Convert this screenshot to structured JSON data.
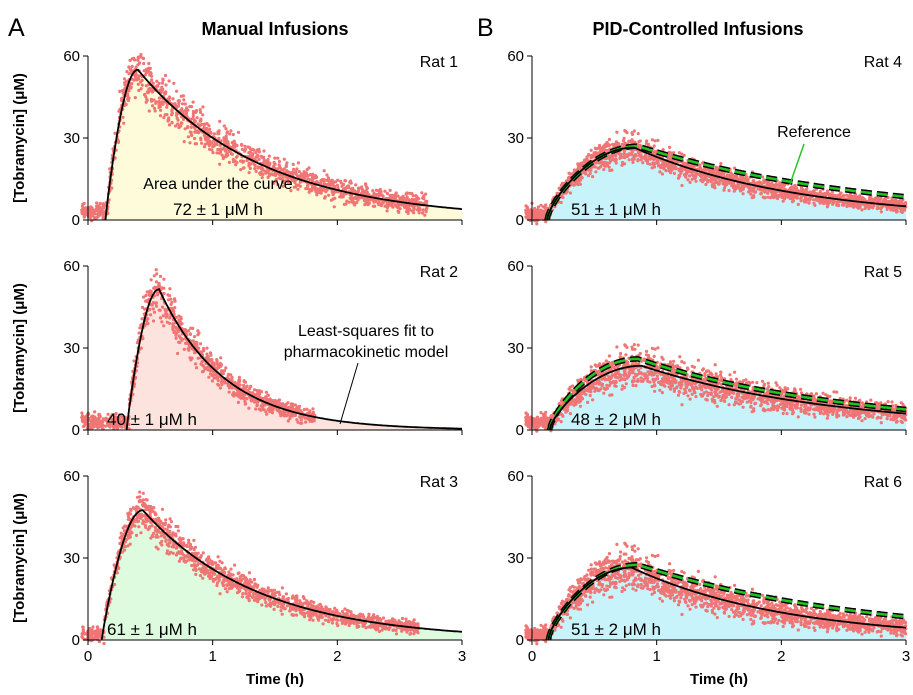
{
  "figure": {
    "panel_letters": [
      "A",
      "B"
    ],
    "column_titles": [
      "Manual Infusions",
      "PID-Controlled Infusions"
    ],
    "colors": {
      "data_points": "#f07575",
      "fit_line": "#000000",
      "reference_line": "#22c022",
      "fill_rat1": "#fdfbd9",
      "fill_rat2": "#fde3dd",
      "fill_rat3": "#defbdf",
      "fill_pid": "#c8f3fb"
    }
  },
  "annotations": {
    "auc_title": "Area under the curve",
    "fit_note_line1": "Least-squares fit to",
    "fit_note_line2": "pharmacokinetic model",
    "reference": "Reference"
  },
  "chart_data": [
    {
      "type": "scatter",
      "rat": "Rat 1",
      "controller": "Manual",
      "auc_text": "72 ± 1 μM h",
      "xlabel": "",
      "ylabel": "[Tobramycin] (μM)",
      "xlim": [
        0,
        3
      ],
      "ylim": [
        0,
        60
      ],
      "yticks": [
        0,
        30,
        60
      ],
      "xticks": [
        0,
        1,
        2,
        3
      ],
      "fit": {
        "t0": 0.14,
        "peak_time": 0.4,
        "peak_value": 55.0,
        "end_value": 4.0,
        "rise_shape": 0.9
      },
      "scatter": {
        "start": -0.05,
        "end": 2.72,
        "noise": 3.4,
        "baseline": 3.0,
        "count": 1400
      },
      "series": [
        {
          "name": "",
          "x": [
            0.14,
            0.25,
            0.4,
            0.75,
            1.0,
            1.5,
            2.0,
            2.5,
            3.0
          ],
          "y": [
            0,
            45,
            55,
            44,
            35,
            21,
            12,
            7,
            4
          ]
        }
      ],
      "fill": "fill_rat1",
      "reference": null
    },
    {
      "type": "scatter",
      "rat": "Rat 2",
      "controller": "Manual",
      "auc_text": "40 ± 1 μM h",
      "xlabel": "",
      "ylabel": "[Tobramycin] (μM)",
      "xlim": [
        0,
        3
      ],
      "ylim": [
        0,
        60
      ],
      "yticks": [
        0,
        30,
        60
      ],
      "xticks": [
        0,
        1,
        2,
        3
      ],
      "fit": {
        "t0": 0.31,
        "peak_time": 0.57,
        "peak_value": 51.5,
        "end_value": 0.5,
        "rise_shape": 0.9
      },
      "scatter": {
        "start": -0.05,
        "end": 1.82,
        "noise": 3.0,
        "baseline": 3.0,
        "count": 1000
      },
      "series": [
        {
          "name": "",
          "x": [
            0.31,
            0.45,
            0.57,
            0.8,
            1.0,
            1.5,
            2.0,
            3.0
          ],
          "y": [
            0,
            40,
            51.5,
            40,
            29,
            11,
            4,
            0.5
          ]
        }
      ],
      "fill": "fill_rat2",
      "reference": null
    },
    {
      "type": "scatter",
      "rat": "Rat 3",
      "controller": "Manual",
      "auc_text": "61 ± 1 μM h",
      "xlabel": "Time (h)",
      "ylabel": "[Tobramycin] (μM)",
      "xlim": [
        0,
        3
      ],
      "ylim": [
        0,
        60
      ],
      "yticks": [
        0,
        30,
        60
      ],
      "xticks": [
        0,
        1,
        2,
        3
      ],
      "fit": {
        "t0": 0.11,
        "peak_time": 0.44,
        "peak_value": 47.5,
        "end_value": 3.0,
        "rise_shape": 0.9
      },
      "scatter": {
        "start": -0.05,
        "end": 2.65,
        "noise": 2.6,
        "baseline": 2.0,
        "count": 1400
      },
      "series": [
        {
          "name": "",
          "x": [
            0.11,
            0.25,
            0.44,
            0.75,
            1.0,
            1.5,
            2.0,
            2.5,
            3.0
          ],
          "y": [
            0,
            36,
            47.5,
            41,
            33,
            20,
            12,
            6,
            3
          ]
        }
      ],
      "fill": "fill_rat3",
      "reference": null
    },
    {
      "type": "scatter",
      "rat": "Rat 4",
      "controller": "PID",
      "auc_text": "51 ± 1 μM h",
      "xlabel": "",
      "ylabel": "",
      "xlim": [
        0,
        3
      ],
      "ylim": [
        0,
        60
      ],
      "yticks": [
        0,
        30,
        60
      ],
      "xticks": [
        0,
        1,
        2,
        3
      ],
      "fit": {
        "t0": 0.12,
        "peak_time": 0.82,
        "peak_value": 26.5,
        "end_value": 5.0,
        "rise_shape": 0.7
      },
      "scatter": {
        "start": -0.05,
        "end": 3.0,
        "noise": 2.0,
        "baseline": 2.0,
        "count": 1900
      },
      "series": [
        {
          "name": "",
          "x": [
            0.12,
            0.4,
            0.82,
            1.2,
            1.5,
            2.0,
            2.5,
            3.0
          ],
          "y": [
            0,
            19,
            26.5,
            23,
            19,
            14,
            9,
            5
          ]
        }
      ],
      "fill": "fill_pid",
      "reference": {
        "t0": 0.12,
        "peak_time": 0.85,
        "peak_value": 27.0,
        "end_value": 8.5,
        "rise_shape": 0.7
      }
    },
    {
      "type": "scatter",
      "rat": "Rat 5",
      "controller": "PID",
      "auc_text": "48 ± 2 μM h",
      "xlabel": "",
      "ylabel": "",
      "xlim": [
        0,
        3
      ],
      "ylim": [
        0,
        60
      ],
      "yticks": [
        0,
        30,
        60
      ],
      "xticks": [
        0,
        1,
        2,
        3
      ],
      "fit": {
        "t0": 0.14,
        "peak_time": 0.88,
        "peak_value": 23.5,
        "end_value": 6.0,
        "rise_shape": 0.7
      },
      "scatter": {
        "start": -0.05,
        "end": 3.0,
        "noise": 2.6,
        "baseline": 3.0,
        "count": 1900
      },
      "series": [
        {
          "name": "",
          "x": [
            0.14,
            0.4,
            0.88,
            1.2,
            1.5,
            2.0,
            2.5,
            3.0
          ],
          "y": [
            0,
            15,
            23.5,
            21,
            18,
            14,
            10,
            6
          ]
        }
      ],
      "fill": "fill_pid",
      "reference": {
        "t0": 0.14,
        "peak_time": 0.85,
        "peak_value": 26.0,
        "end_value": 7.5,
        "rise_shape": 0.7
      }
    },
    {
      "type": "scatter",
      "rat": "Rat 6",
      "controller": "PID",
      "auc_text": "51 ± 2 μM h",
      "xlabel": "Time (h)",
      "ylabel": "",
      "xlim": [
        0,
        3
      ],
      "ylim": [
        0,
        60
      ],
      "yticks": [
        0,
        30,
        60
      ],
      "xticks": [
        0,
        1,
        2,
        3
      ],
      "fit": {
        "t0": 0.13,
        "peak_time": 0.8,
        "peak_value": 26.5,
        "end_value": 4.5,
        "rise_shape": 0.7
      },
      "scatter": {
        "start": -0.05,
        "end": 3.0,
        "noise": 2.8,
        "baseline": 2.0,
        "count": 1900
      },
      "series": [
        {
          "name": "",
          "x": [
            0.13,
            0.4,
            0.8,
            1.2,
            1.5,
            2.0,
            2.5,
            3.0
          ],
          "y": [
            0,
            19,
            26.5,
            22,
            18,
            13,
            8,
            4.5
          ]
        }
      ],
      "fill": "fill_pid",
      "reference": {
        "t0": 0.13,
        "peak_time": 0.85,
        "peak_value": 27.5,
        "end_value": 8.5,
        "rise_shape": 0.7
      }
    }
  ]
}
